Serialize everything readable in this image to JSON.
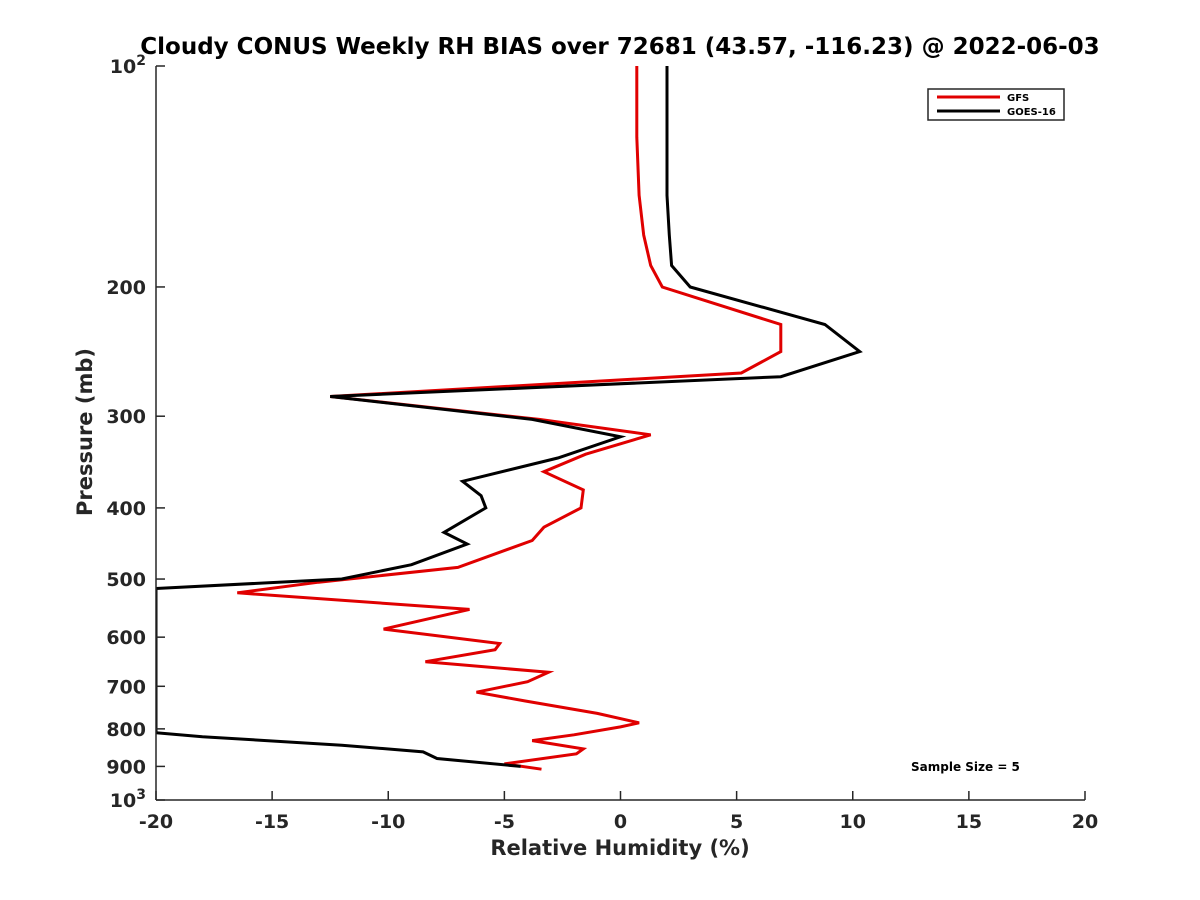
{
  "chart_data": {
    "type": "line",
    "title": "Cloudy CONUS Weekly RH BIAS over 72681 (43.57, -116.23) @ 2022-06-03",
    "xlabel": "Relative Humidity (%)",
    "ylabel": "Pressure (mb)",
    "xlim": [
      -20,
      20
    ],
    "ylim": [
      100,
      1000
    ],
    "y_scale": "log",
    "y_reversed": true,
    "grid": false,
    "legend_position": "top-right",
    "x_ticks": [
      -20,
      -15,
      -10,
      -5,
      0,
      5,
      10,
      15,
      20
    ],
    "x_tick_labels": [
      "-20",
      "-15",
      "-10",
      "-5",
      "0",
      "5",
      "10",
      "15",
      "20"
    ],
    "y_ticks": [
      100,
      200,
      300,
      400,
      500,
      600,
      700,
      800,
      900,
      1000
    ],
    "y_tick_labels": [
      {
        "base": "10",
        "exp": "2"
      },
      {
        "base": "200",
        "exp": ""
      },
      {
        "base": "300",
        "exp": ""
      },
      {
        "base": "400",
        "exp": ""
      },
      {
        "base": "500",
        "exp": ""
      },
      {
        "base": "600",
        "exp": ""
      },
      {
        "base": "700",
        "exp": ""
      },
      {
        "base": "800",
        "exp": ""
      },
      {
        "base": "900",
        "exp": ""
      },
      {
        "base": "10",
        "exp": "3"
      }
    ],
    "annotation": "Sample Size = 5",
    "series": [
      {
        "name": "GFS",
        "color": "#e00000",
        "points": [
          [
            0.7,
            100
          ],
          [
            0.7,
            125
          ],
          [
            0.8,
            150
          ],
          [
            1.0,
            170
          ],
          [
            1.3,
            187
          ],
          [
            1.8,
            200
          ],
          [
            6.9,
            225
          ],
          [
            6.9,
            245
          ],
          [
            5.2,
            262
          ],
          [
            -12.5,
            282
          ],
          [
            -3.5,
            303
          ],
          [
            1.3,
            318
          ],
          [
            -1.5,
            338
          ],
          [
            -3.3,
            357
          ],
          [
            -1.6,
            378
          ],
          [
            -1.7,
            400
          ],
          [
            -3.3,
            425
          ],
          [
            -3.8,
            443
          ],
          [
            -7.0,
            482
          ],
          [
            -13.0,
            505
          ],
          [
            -16.5,
            522
          ],
          [
            -6.5,
            550
          ],
          [
            -10.2,
            585
          ],
          [
            -5.2,
            612
          ],
          [
            -5.4,
            624
          ],
          [
            -8.4,
            648
          ],
          [
            -3.1,
            670
          ],
          [
            -4.0,
            690
          ],
          [
            -6.2,
            713
          ],
          [
            -4.1,
            733
          ],
          [
            -1.0,
            762
          ],
          [
            0.8,
            785
          ],
          [
            0.0,
            795
          ],
          [
            -2.0,
            815
          ],
          [
            -3.8,
            830
          ],
          [
            -1.6,
            852
          ],
          [
            -1.9,
            865
          ],
          [
            -5.0,
            893
          ],
          [
            -3.4,
            908
          ]
        ]
      },
      {
        "name": "GOES-16",
        "color": "#000000",
        "points": [
          [
            2.0,
            100
          ],
          [
            2.0,
            125
          ],
          [
            2.0,
            150
          ],
          [
            2.1,
            170
          ],
          [
            2.2,
            187
          ],
          [
            3.0,
            200
          ],
          [
            8.8,
            225
          ],
          [
            10.3,
            245
          ],
          [
            6.9,
            265
          ],
          [
            -12.5,
            282
          ],
          [
            -3.8,
            303
          ],
          [
            0.0,
            320
          ],
          [
            -2.7,
            342
          ],
          [
            -6.8,
            368
          ],
          [
            -6.0,
            385
          ],
          [
            -5.8,
            400
          ],
          [
            -7.6,
            432
          ],
          [
            -6.6,
            448
          ],
          [
            -9.0,
            478
          ],
          [
            -12.0,
            500
          ],
          [
            -20.0,
            515
          ],
          [
            -20.0,
            810
          ],
          [
            -18.0,
            820
          ],
          [
            -12.0,
            842
          ],
          [
            -8.5,
            860
          ],
          [
            -7.9,
            878
          ],
          [
            -4.3,
            900
          ]
        ]
      }
    ]
  }
}
